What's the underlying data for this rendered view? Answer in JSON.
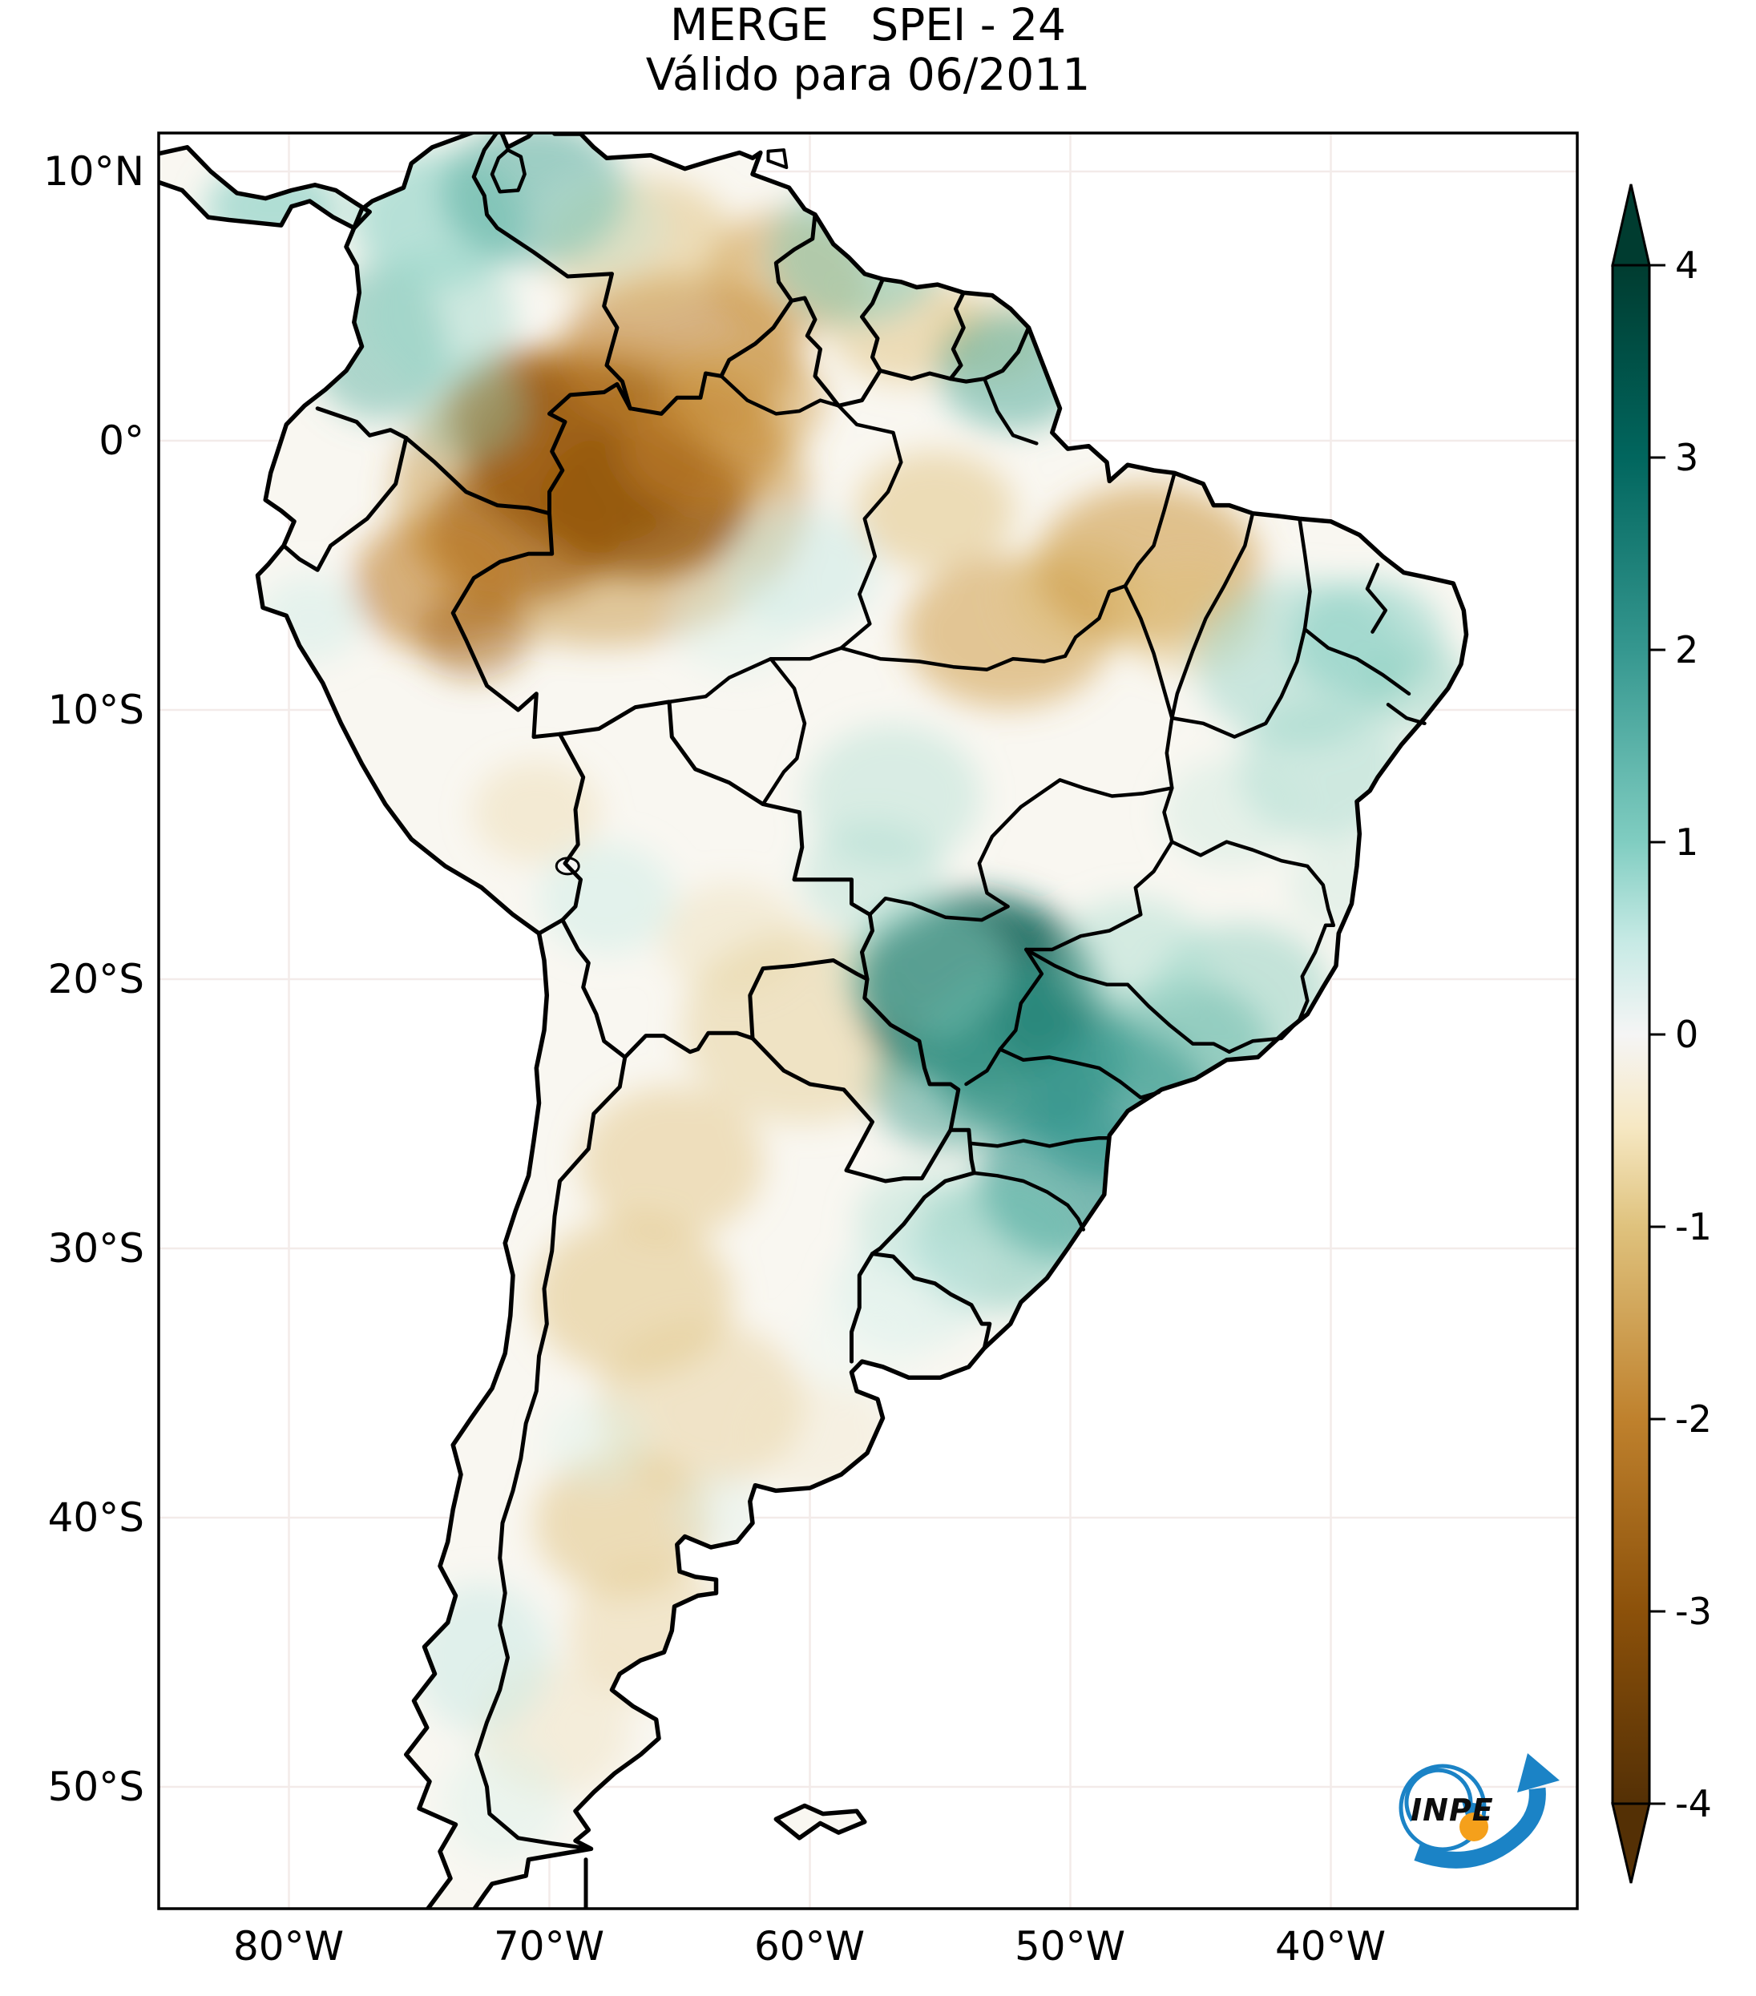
{
  "title": {
    "line1": "MERGE   SPEI - 24",
    "line2": "Válido para 06/2011"
  },
  "axes": {
    "lat_labels": [
      "10°N",
      "0°",
      "10°S",
      "20°S",
      "30°S",
      "40°S",
      "50°S"
    ],
    "lon_labels": [
      "80°W",
      "70°W",
      "60°W",
      "50°W",
      "40°W"
    ]
  },
  "colorbar": {
    "tick_labels": [
      "4",
      "3",
      "2",
      "1",
      "0",
      "-1",
      "-2",
      "-3",
      "-4"
    ],
    "max": 4,
    "min": -4,
    "positive_color": "#003c30",
    "negative_color": "#543005",
    "zero_color": "#f5f5f5"
  },
  "logo": {
    "text": "INPE",
    "blue": "#1b83c6",
    "orange": "#f5a01b"
  },
  "chart_data": {
    "type": "heatmap",
    "title": "MERGE   SPEI - 24",
    "subtitle": "Válido para 06/2011",
    "region": "South America",
    "x_axis": {
      "label": "longitude",
      "ticks": [
        "80°W",
        "70°W",
        "60°W",
        "50°W",
        "40°W"
      ],
      "range_deg_west": [
        85,
        30.5
      ]
    },
    "y_axis": {
      "label": "latitude",
      "ticks": [
        "10°N",
        "0°",
        "10°S",
        "20°S",
        "30°S",
        "40°S",
        "50°S"
      ],
      "range_deg": [
        11.4,
        -54.5
      ]
    },
    "colorbar": {
      "ticks": [
        4,
        3,
        2,
        1,
        0,
        -1,
        -2,
        -3,
        -4
      ],
      "extend": "both",
      "palette": "brown-white-teal (BrBG)"
    },
    "anomaly_regions": [
      {
        "area": "NW Amazon / Colombia-Venezuela-Brazil frontier",
        "spei": -3.5
      },
      {
        "area": "Southern Venezuela and Guianas",
        "spei": -1.5
      },
      {
        "area": "NE Peru",
        "spei": -1.5
      },
      {
        "area": "Maranhão / SE Pará",
        "spei": -1.2
      },
      {
        "area": "Chaco / NW and central Argentina / Patagonia",
        "spei": -1.0
      },
      {
        "area": "Mato Grosso do Sul / São Paulo / Paraná core",
        "spei": 3.0
      },
      {
        "area": "South and Southeast Brazil broad area",
        "spei": 1.5
      },
      {
        "area": "Northeast Brazil interior and coast",
        "spei": 1.0
      },
      {
        "area": "Northern Colombia / NW Venezuela / Panama",
        "spei": 1.0
      },
      {
        "area": "Amapá",
        "spei": 1.0
      },
      {
        "area": "Southern Chile",
        "spei": 0.5
      }
    ]
  }
}
